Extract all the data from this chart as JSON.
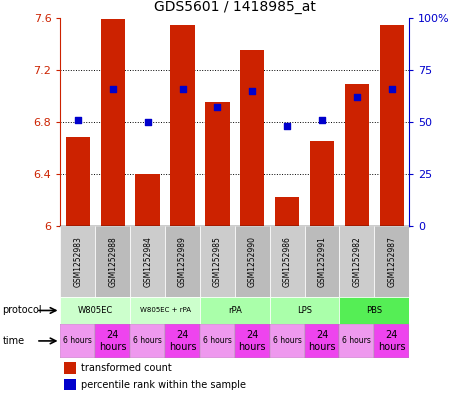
{
  "title": "GDS5601 / 1418985_at",
  "samples": [
    "GSM1252983",
    "GSM1252988",
    "GSM1252984",
    "GSM1252989",
    "GSM1252985",
    "GSM1252990",
    "GSM1252986",
    "GSM1252991",
    "GSM1252982",
    "GSM1252987"
  ],
  "bar_values": [
    6.68,
    7.59,
    6.4,
    7.54,
    6.95,
    7.35,
    6.22,
    6.65,
    7.09,
    7.54
  ],
  "dot_values": [
    51,
    66,
    50,
    66,
    57,
    65,
    48,
    51,
    62,
    66
  ],
  "ylim": [
    6.0,
    7.6
  ],
  "y2lim": [
    0,
    100
  ],
  "yticks": [
    6.0,
    6.4,
    6.8,
    7.2,
    7.6
  ],
  "y2ticks": [
    0,
    25,
    50,
    75,
    100
  ],
  "bar_color": "#CC2200",
  "dot_color": "#0000CC",
  "protocols": [
    {
      "label": "W805EC",
      "span": [
        0,
        2
      ],
      "color": "#ccffcc"
    },
    {
      "label": "W805EC + rPA",
      "span": [
        2,
        4
      ],
      "color": "#ccffcc"
    },
    {
      "label": "rPA",
      "span": [
        4,
        6
      ],
      "color": "#aaffaa"
    },
    {
      "label": "LPS",
      "span": [
        6,
        8
      ],
      "color": "#aaffaa"
    },
    {
      "label": "PBS",
      "span": [
        8,
        10
      ],
      "color": "#55ee55"
    }
  ],
  "time_color_6h": "#ee99ee",
  "time_color_24h": "#ee44ee",
  "legend_red": "transformed count",
  "legend_blue": "percentile rank within the sample",
  "grid_color": "#aaaaaa",
  "ylabel_color_left": "#CC2200",
  "ylabel_color_right": "#0000CC",
  "sample_bg_even": "#cccccc",
  "sample_bg_odd": "#bbbbbb"
}
